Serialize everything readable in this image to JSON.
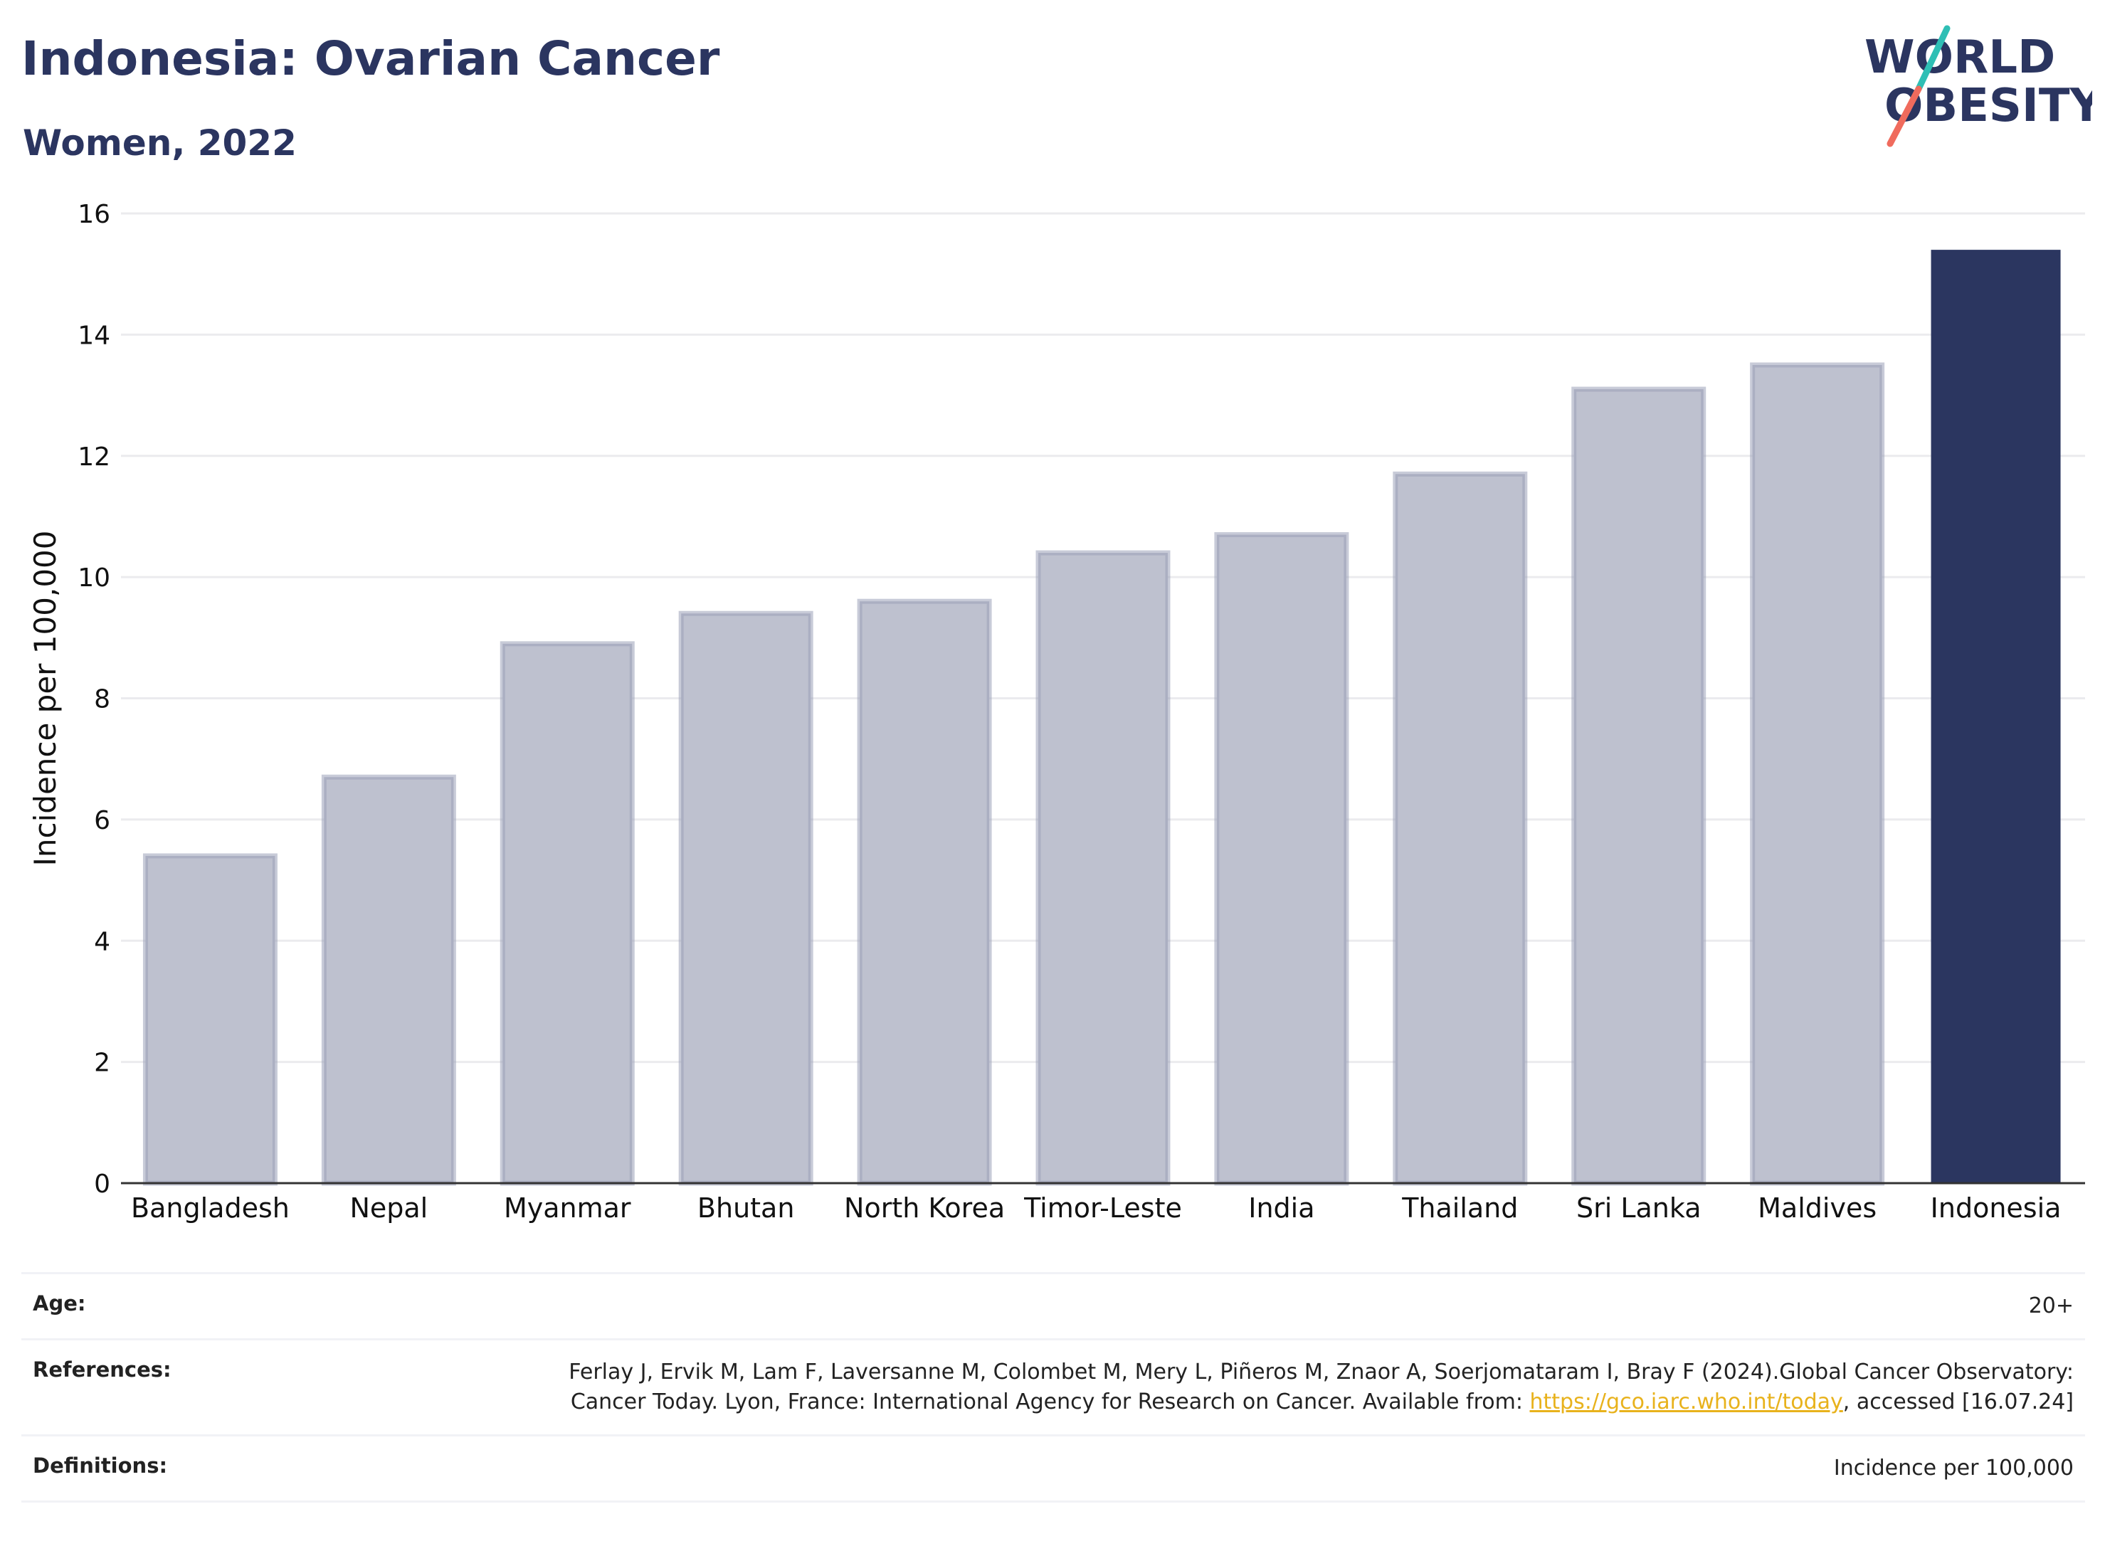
{
  "header": {
    "title": "Indonesia: Ovarian Cancer",
    "subtitle": "Women, 2022"
  },
  "logo": {
    "line1": "WORLD",
    "line2": "OBESITY",
    "text_color": "#2b3560",
    "slash_colors": [
      "#2fbfb5",
      "#f06b5d"
    ]
  },
  "colors": {
    "highlight_bar": "#2b3660",
    "other_bar_fill": "#bec1cf",
    "other_bar_stroke": "#9aa0b8",
    "text_dark": "#2b3560",
    "link": "#e8b21c"
  },
  "chart_data": {
    "type": "bar",
    "title": "",
    "xlabel": "",
    "ylabel": "Incidence per 100,000",
    "ylim": [
      0,
      16
    ],
    "yticks": [
      0,
      2,
      4,
      6,
      8,
      10,
      12,
      14,
      16
    ],
    "grid": true,
    "categories": [
      "Bangladesh",
      "Nepal",
      "Myanmar",
      "Bhutan",
      "North Korea",
      "Timor-Leste",
      "India",
      "Thailand",
      "Sri Lanka",
      "Maldives",
      "Indonesia"
    ],
    "values": [
      5.4,
      6.7,
      8.9,
      9.4,
      9.6,
      10.4,
      10.7,
      11.7,
      13.1,
      13.5,
      15.4
    ],
    "highlight": "Indonesia"
  },
  "info": {
    "age_label": "Age:",
    "age_value": "20+",
    "references_label": "References:",
    "references_text_1": "Ferlay J, Ervik M, Lam F, Laversanne M, Colombet M, Mery L, Piñeros M, Znaor A, Soerjomataram I, Bray F (2024).Global Cancer Observatory: Cancer Today. Lyon, France: International Agency for Research on Cancer. Available from: ",
    "references_link": "https://gco.iarc.who.int/today",
    "references_text_2": ", accessed [16.07.24]",
    "definitions_label": "Definitions:",
    "definitions_value": "Incidence per 100,000"
  }
}
